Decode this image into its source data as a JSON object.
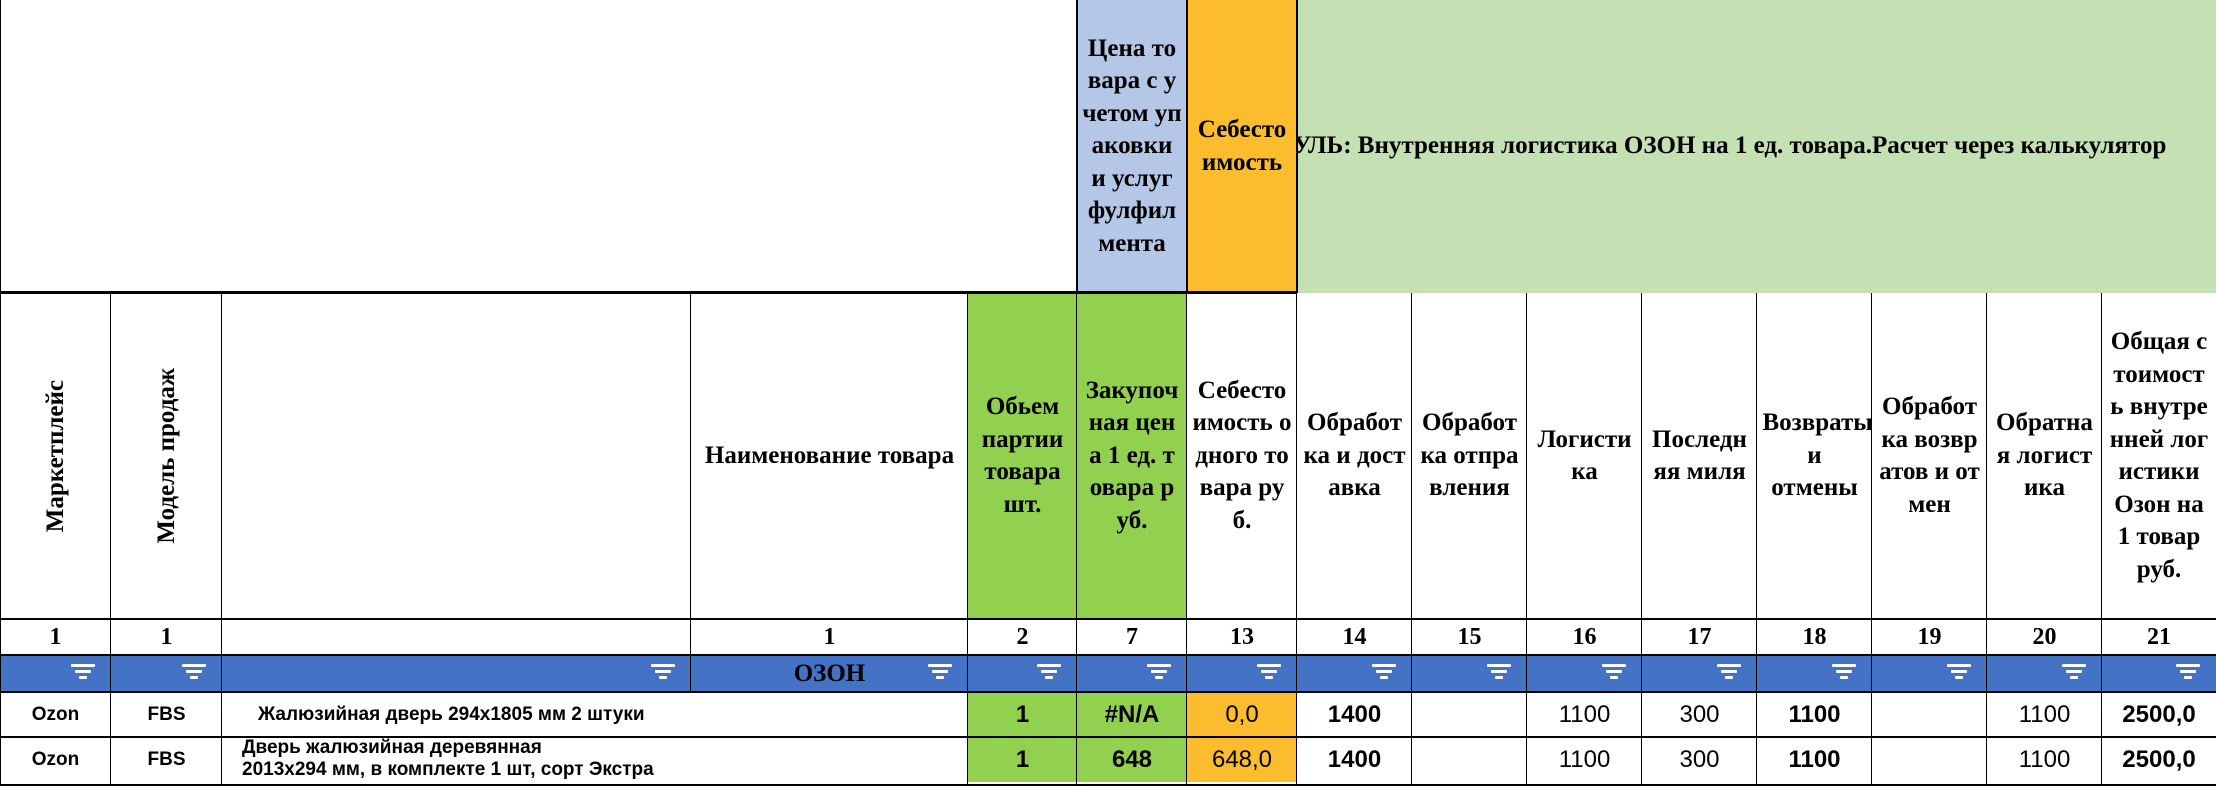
{
  "colors": {
    "blue_header": "#b4c7e7",
    "orange": "#fbbc2d",
    "light_green": "#c5e0b3",
    "green": "#92d050",
    "filter_blue": "#4472c4"
  },
  "top_header": {
    "price_with_packaging": "Цена товара с учетом упаковки и услуг фулфилмента",
    "cost": "Себестоимость",
    "module_title": "УЛЬ: Внутренняя логистика ОЗОН на 1 ед. товара.Расчет через калькулятор"
  },
  "columns": [
    {
      "label": "Маркетплейс",
      "num": "1"
    },
    {
      "label": "Модель продаж",
      "num": "1"
    },
    {
      "label": "",
      "num": ""
    },
    {
      "label": "Наименование товара",
      "num": "1"
    },
    {
      "label": "Обьем партии товара шт.",
      "num": "2"
    },
    {
      "label": "Закупочная цена 1 ед. товара руб.",
      "num": "7"
    },
    {
      "label": "Себестоимость одного товара руб.",
      "num": "13"
    },
    {
      "label": "Обработка и доставка",
      "num": "14"
    },
    {
      "label": "Обработка отправления",
      "num": "15"
    },
    {
      "label": "Логистика",
      "num": "16"
    },
    {
      "label": "Последняя миля",
      "num": "17"
    },
    {
      "label": "Возвраты и отмены",
      "num": "18"
    },
    {
      "label": "Обработка возвратов и отмен",
      "num": "19"
    },
    {
      "label": "Обратная логистика",
      "num": "20"
    },
    {
      "label": "Общая стоимость внутренней логистики Озон на 1 товар руб.",
      "num": "21"
    }
  ],
  "filter_row": {
    "group_label": "ОЗОН"
  },
  "rows": [
    {
      "marketplace": "Ozon",
      "model": "FBS",
      "name": "Жалюзийная дверь 294х1805 мм 2 штуки",
      "name2": "",
      "qty": "1",
      "purchase_price": "#N/A",
      "cost": "0,0",
      "processing_delivery": "1400",
      "processing_shipment": "",
      "logistics": "1100",
      "last_mile": "300",
      "returns": "1100",
      "returns_processing": "",
      "reverse_logistics": "1100",
      "total": "2500,0"
    },
    {
      "marketplace": "Ozon",
      "model": "FBS",
      "name": "Дверь жалюзийная деревянная",
      "name2": "2013х294 мм, в комплекте 1 шт, сорт Экстра",
      "qty": "1",
      "purchase_price": "648",
      "cost": "648,0",
      "processing_delivery": "1400",
      "processing_shipment": "",
      "logistics": "1100",
      "last_mile": "300",
      "returns": "1100",
      "returns_processing": "",
      "reverse_logistics": "1100",
      "total": "2500,0"
    }
  ]
}
